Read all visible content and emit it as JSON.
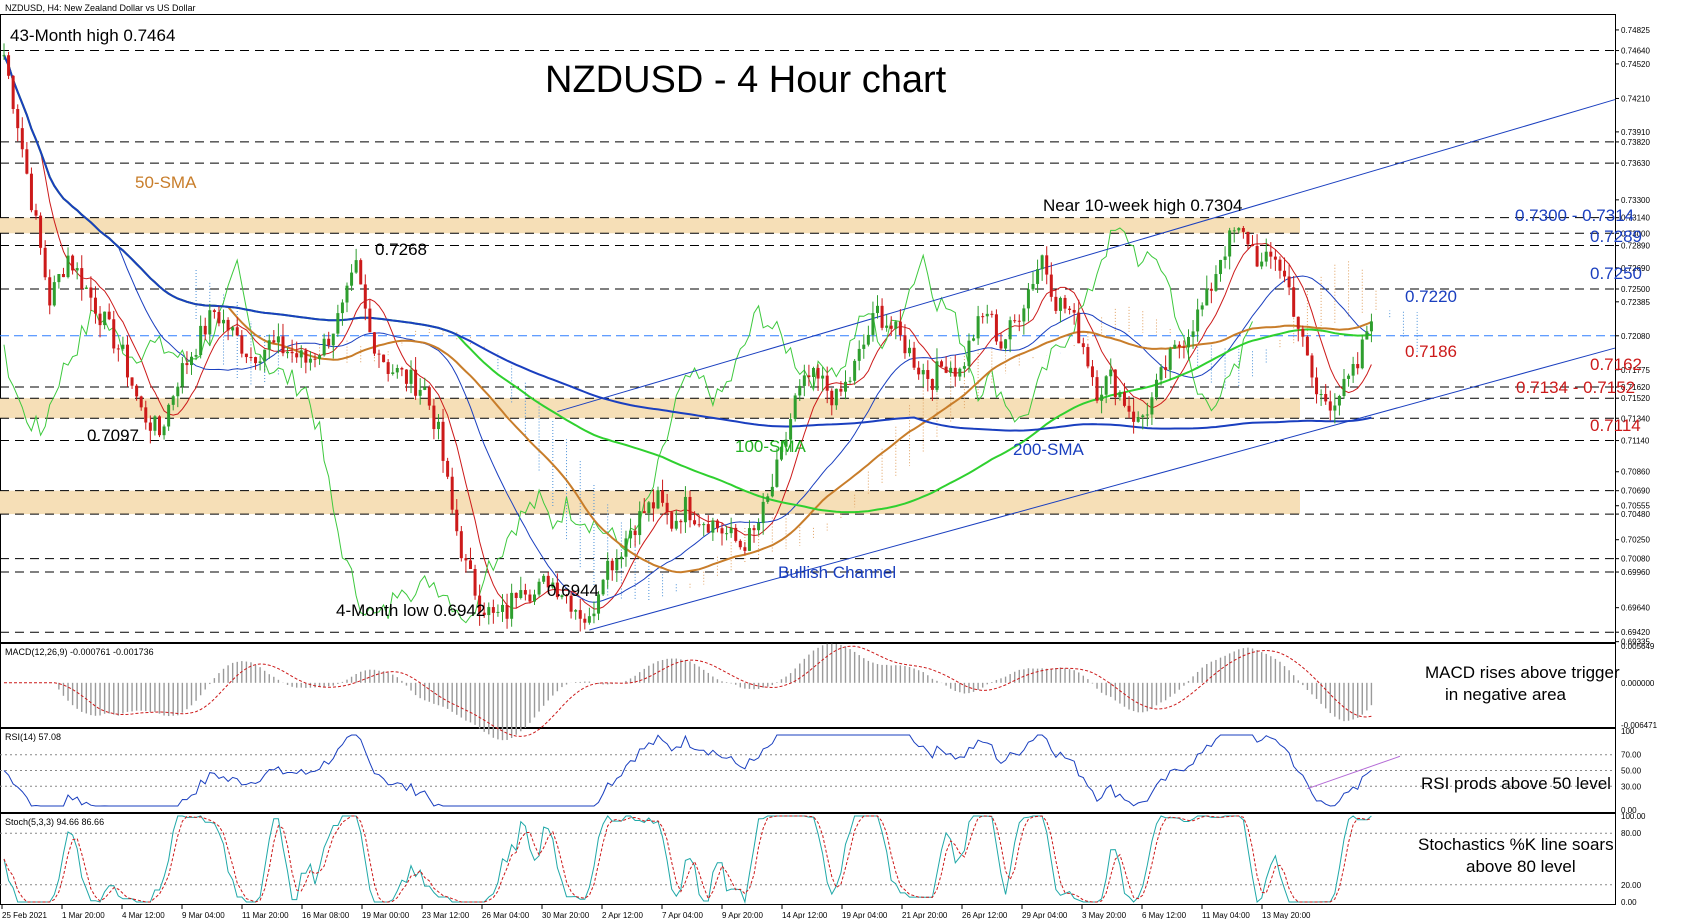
{
  "header": {
    "symbol_info": "NZDUSD, H4:  New Zealand Dollar vs US Dollar",
    "macd_label": "MACD(12,26,9) -0.000761 -0.001736",
    "rsi_label": "RSI(14) 57.08",
    "stoch_label": "Stoch(5,3,3) 94.66 86.66"
  },
  "chart_data": {
    "type": "candlestick",
    "title": "NZDUSD - 4 Hour chart",
    "symbol": "NZDUSD",
    "timeframe": "H4",
    "ylim": [
      0.6935,
      0.7495
    ],
    "price_ticks": [
      "0.74825",
      "0.74640",
      "0.74520",
      "0.74210",
      "0.73910",
      "0.73820",
      "0.73630",
      "0.73300",
      "0.73140",
      "0.73000",
      "0.72890",
      "0.72690",
      "0.72500",
      "0.72385",
      "0.72080",
      "0.71775",
      "0.71620",
      "0.71520",
      "0.71340",
      "0.71140",
      "0.70860",
      "0.70690",
      "0.70555",
      "0.70480",
      "0.70250",
      "0.70080",
      "0.69960",
      "0.69640",
      "0.69420",
      "0.69335"
    ],
    "x_labels": [
      "25 Feb 2021",
      "1 Mar 20:00",
      "4 Mar 12:00",
      "9 Mar 04:00",
      "11 Mar 20:00",
      "16 Mar 08:00",
      "19 Mar 00:00",
      "23 Mar 12:00",
      "26 Mar 04:00",
      "30 Mar 20:00",
      "2 Apr 12:00",
      "7 Apr 04:00",
      "9 Apr 20:00",
      "14 Apr 12:00",
      "19 Apr 04:00",
      "21 Apr 20:00",
      "26 Apr 12:00",
      "29 Apr 04:00",
      "3 May 20:00",
      "6 May 12:00",
      "11 May 04:00",
      "13 May 20:00"
    ],
    "close_path": [
      [
        0,
        0.746
      ],
      [
        3,
        0.74
      ],
      [
        6,
        0.733
      ],
      [
        10,
        0.724
      ],
      [
        14,
        0.728
      ],
      [
        18,
        0.725
      ],
      [
        22,
        0.722
      ],
      [
        26,
        0.719
      ],
      [
        30,
        0.714
      ],
      [
        34,
        0.712
      ],
      [
        38,
        0.717
      ],
      [
        42,
        0.72
      ],
      [
        46,
        0.723
      ],
      [
        50,
        0.721
      ],
      [
        54,
        0.719
      ],
      [
        58,
        0.72
      ],
      [
        62,
        0.7195
      ],
      [
        66,
        0.7185
      ],
      [
        70,
        0.72
      ],
      [
        74,
        0.723
      ],
      [
        77,
        0.7268
      ],
      [
        80,
        0.721
      ],
      [
        84,
        0.718
      ],
      [
        88,
        0.717
      ],
      [
        92,
        0.716
      ],
      [
        95,
        0.712
      ],
      [
        98,
        0.705
      ],
      [
        101,
        0.7
      ],
      [
        104,
        0.697
      ],
      [
        107,
        0.6955
      ],
      [
        110,
        0.696
      ],
      [
        113,
        0.699
      ],
      [
        116,
        0.6975
      ],
      [
        119,
        0.699
      ],
      [
        122,
        0.698
      ],
      [
        125,
        0.6965
      ],
      [
        128,
        0.695
      ],
      [
        131,
        0.7
      ],
      [
        134,
        0.701
      ],
      [
        137,
        0.7035
      ],
      [
        140,
        0.705
      ],
      [
        143,
        0.706
      ],
      [
        146,
        0.704
      ],
      [
        149,
        0.7055
      ],
      [
        152,
        0.7045
      ],
      [
        155,
        0.704
      ],
      [
        158,
        0.703
      ],
      [
        161,
        0.702
      ],
      [
        164,
        0.703
      ],
      [
        167,
        0.706
      ],
      [
        170,
        0.71
      ],
      [
        173,
        0.715
      ],
      [
        176,
        0.717
      ],
      [
        179,
        0.7165
      ],
      [
        182,
        0.715
      ],
      [
        185,
        0.717
      ],
      [
        188,
        0.72
      ],
      [
        191,
        0.723
      ],
      [
        194,
        0.7215
      ],
      [
        197,
        0.72
      ],
      [
        200,
        0.718
      ],
      [
        203,
        0.717
      ],
      [
        206,
        0.7185
      ],
      [
        209,
        0.7175
      ],
      [
        212,
        0.721
      ],
      [
        215,
        0.723
      ],
      [
        218,
        0.72
      ],
      [
        221,
        0.722
      ],
      [
        224,
        0.725
      ],
      [
        227,
        0.728
      ],
      [
        230,
        0.724
      ],
      [
        233,
        0.723
      ],
      [
        236,
        0.72
      ],
      [
        239,
        0.716
      ],
      [
        242,
        0.717
      ],
      [
        245,
        0.715
      ],
      [
        248,
        0.713
      ],
      [
        251,
        0.715
      ],
      [
        254,
        0.718
      ],
      [
        257,
        0.72
      ],
      [
        260,
        0.722
      ],
      [
        263,
        0.724
      ],
      [
        266,
        0.728
      ],
      [
        269,
        0.73
      ],
      [
        272,
        0.7295
      ],
      [
        275,
        0.727
      ],
      [
        278,
        0.728
      ],
      [
        281,
        0.725
      ],
      [
        284,
        0.72
      ],
      [
        287,
        0.7155
      ],
      [
        290,
        0.715
      ],
      [
        293,
        0.716
      ],
      [
        296,
        0.718
      ],
      [
        299,
        0.723
      ]
    ],
    "horizontal_levels": [
      0.7464,
      0.7382,
      0.7363,
      0.7314,
      0.73,
      0.7289,
      0.725,
      0.7162,
      0.7152,
      0.7134,
      0.7114,
      0.7069,
      0.7048,
      0.7008,
      0.6996,
      0.6942
    ],
    "current_price": 0.7208,
    "zones": [
      {
        "from": 0.73,
        "to": 0.7314
      },
      {
        "from": 0.7134,
        "to": 0.7152
      },
      {
        "from": 0.7048,
        "to": 0.7069
      }
    ],
    "indicators": [
      "50-SMA",
      "100-SMA",
      "200-SMA",
      "Ichimoku Cloud",
      "MACD(12,26,9)",
      "RSI(14)",
      "Stoch(5,3,3)"
    ],
    "colors": {
      "bull": "#2e9e2e",
      "bear": "#cc1a1a",
      "sma50": "#c87d2a",
      "sma100": "#2fd02f",
      "sma200": "#1a3fbf",
      "zone": "#f6dfb7",
      "cloud_bull": "#e0a060",
      "cloud_bear": "#4a90d8",
      "current": "#2f7fff"
    },
    "macd_range": [
      -0.006471,
      0.005649
    ],
    "macd_ticks": [
      "0.005649",
      "0.000000",
      "-0.006471"
    ],
    "rsi_ticks": [
      "100",
      "70.00",
      "50.00",
      "30.00",
      "0.00"
    ],
    "stoch_ticks": [
      "100.00",
      "80.00",
      "20.00",
      "0.00"
    ]
  },
  "annotations": {
    "high43": "43-Month high 0.7464",
    "sma50": "50-SMA",
    "sma100": "100-SMA",
    "sma200": "200-SMA",
    "p7268": "0.7268",
    "p7097": "0.7097",
    "low4": "4-Month low 0.6942",
    "p6944": "0.6944",
    "near10": "Near 10-week high 0.7304",
    "channel": "Bullish Channel",
    "r1": "0.7300 - 0.7314",
    "r2": "0.7289",
    "r3": "0.7250",
    "r4": "0.7220",
    "r5": "0.7186",
    "r6": "0.7162",
    "r7": "0.7134 - 0.7152",
    "r8": "0.7114",
    "macd_note1": "MACD rises above trigger",
    "macd_note2": "in negative area",
    "rsi_note": "RSI prods above 50 level",
    "stoch_note1": "Stochastics %K line soars",
    "stoch_note2": "above 80 level"
  }
}
